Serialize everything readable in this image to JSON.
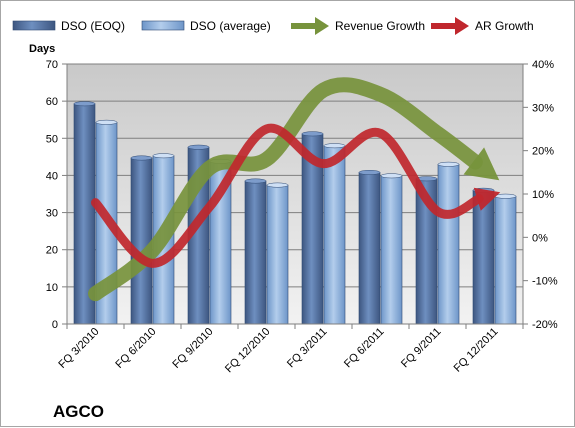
{
  "chart_data": {
    "type": "bar",
    "title": "",
    "company": "AGCO",
    "categories": [
      "FQ 3/2010",
      "FQ 6/2010",
      "FQ 9/2010",
      "FQ 12/2010",
      "FQ 3/2011",
      "FQ 6/2011",
      "FQ 9/2011",
      "FQ 12/2011"
    ],
    "bar_series": [
      {
        "name": "DSO (EOQ)",
        "color": "#4f6f9f",
        "values": [
          59.3,
          44.7,
          47.6,
          38.5,
          51.2,
          40.8,
          39.1,
          36.0
        ]
      },
      {
        "name": "DSO (average)",
        "color": "#8db4e2",
        "values": [
          54.3,
          45.3,
          43.8,
          37.4,
          48.0,
          39.9,
          43.0,
          34.4
        ]
      }
    ],
    "line_series": [
      {
        "name": "Revenue Growth",
        "color": "#77933c",
        "axis": "right",
        "values": [
          -13,
          -3,
          16,
          18,
          34,
          33,
          24,
          14
        ]
      },
      {
        "name": "AR Growth",
        "color": "#c0272d",
        "axis": "right",
        "values": [
          8,
          -6,
          7,
          25,
          17,
          24,
          6,
          10
        ]
      }
    ],
    "ylabel": "Days",
    "ylim": [
      0,
      70
    ],
    "yticks": [
      "0",
      "10",
      "20",
      "30",
      "40",
      "50",
      "60",
      "70"
    ],
    "y2lim": [
      -20,
      40
    ],
    "y2ticks": [
      "-20%",
      "-10%",
      "0%",
      "10%",
      "20%",
      "30%",
      "40%"
    ],
    "legend": "top",
    "grid": true
  }
}
